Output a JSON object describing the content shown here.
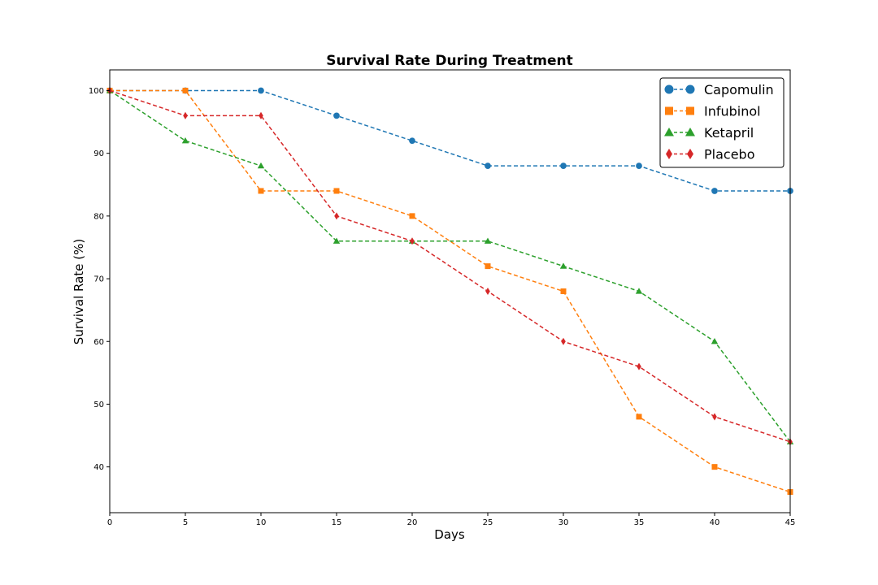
{
  "chart_data": {
    "type": "line",
    "title": "Survival Rate During Treatment",
    "xlabel": "Days",
    "ylabel": "Survival Rate (%)",
    "x": [
      0,
      5,
      10,
      15,
      20,
      25,
      30,
      35,
      40,
      45
    ],
    "xlim": [
      0,
      45
    ],
    "ylim": [
      32.7,
      103.3
    ],
    "xticks": [
      0,
      5,
      10,
      15,
      20,
      25,
      30,
      35,
      40,
      45
    ],
    "yticks": [
      40,
      50,
      60,
      70,
      80,
      90,
      100
    ],
    "grid": false,
    "legend_position": "top-right",
    "series": [
      {
        "name": "Capomulin",
        "color": "#1f77b4",
        "marker": "circle",
        "linestyle": "dashed",
        "values": [
          100,
          100,
          100,
          96,
          92,
          88,
          88,
          88,
          84,
          84
        ]
      },
      {
        "name": "Infubinol",
        "color": "#ff7f0e",
        "marker": "square",
        "linestyle": "dashed",
        "values": [
          100,
          100,
          84,
          84,
          80,
          72,
          68,
          48,
          40,
          36
        ]
      },
      {
        "name": "Ketapril",
        "color": "#2ca02c",
        "marker": "triangle",
        "linestyle": "dashed",
        "values": [
          100,
          92,
          88,
          76,
          76,
          76,
          72,
          68,
          60,
          44
        ]
      },
      {
        "name": "Placebo",
        "color": "#d62728",
        "marker": "diamond",
        "linestyle": "dashed",
        "values": [
          100,
          96,
          96,
          80,
          76,
          68,
          60,
          56,
          48,
          44
        ]
      }
    ]
  }
}
